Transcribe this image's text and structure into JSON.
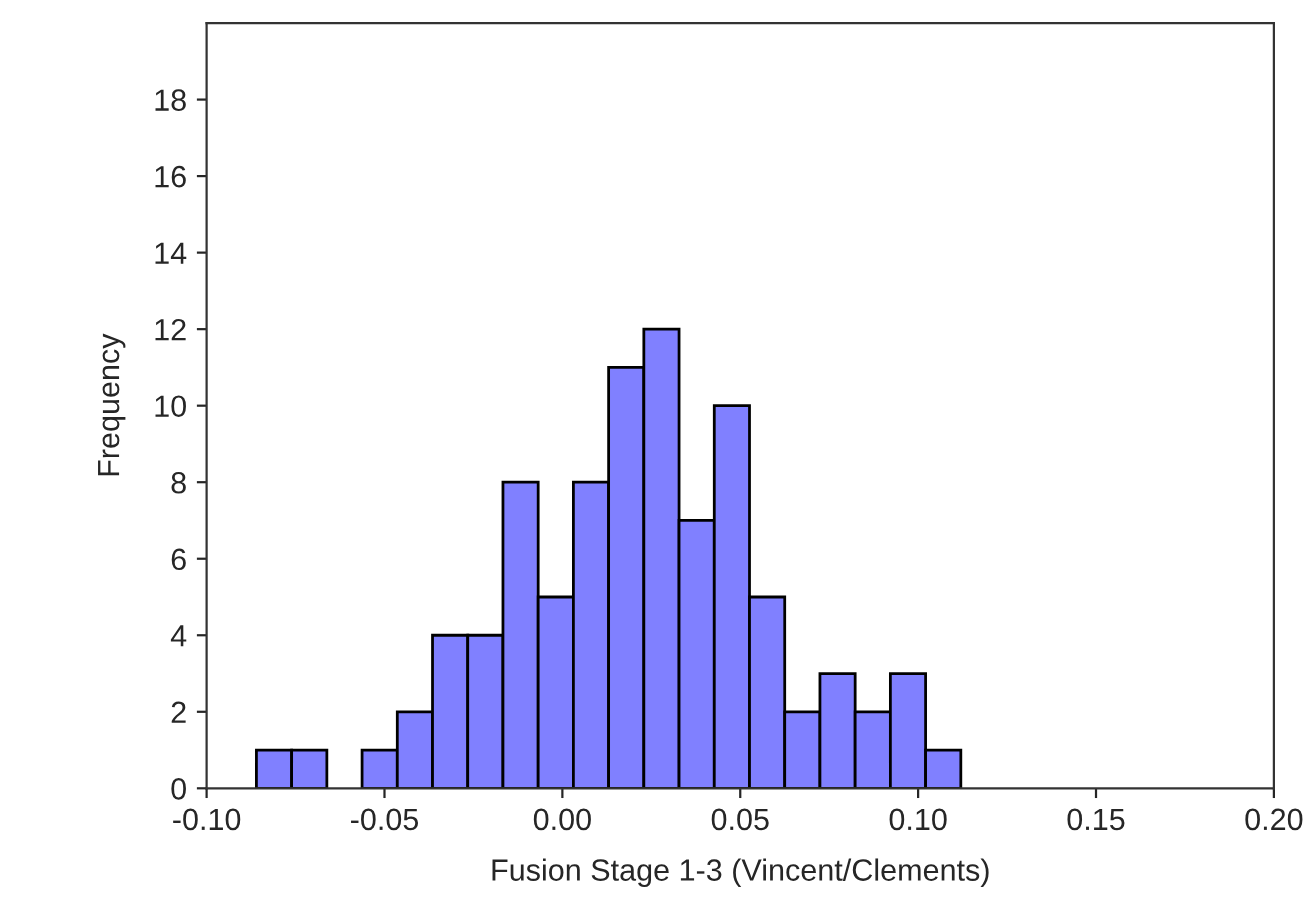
{
  "chart_data": {
    "type": "histogram",
    "xlabel": "Fusion Stage 1-3 (Vincent/Clements)",
    "ylabel": "Frequency",
    "bins": [
      -0.086,
      -0.0761,
      -0.0662,
      -0.0563,
      -0.0464,
      -0.0365,
      -0.0266,
      -0.0167,
      -0.0068,
      0.0031,
      0.013,
      0.0229,
      0.0328,
      0.0427,
      0.0526,
      0.0625,
      0.0724,
      0.0823,
      0.0922,
      0.1021,
      0.112
    ],
    "values": [
      1,
      1,
      0,
      1,
      2,
      4,
      4,
      8,
      5,
      8,
      11,
      12,
      7,
      10,
      5,
      2,
      3,
      2,
      3,
      1
    ],
    "color": "#8080ff",
    "xlim": [
      -0.1,
      0.2
    ],
    "xticks": [
      {
        "value": -0.1,
        "label": "-0.10"
      },
      {
        "value": -0.05,
        "label": "-0.05"
      },
      {
        "value": 0,
        "label": "0.00"
      },
      {
        "value": 0.05,
        "label": "0.05"
      },
      {
        "value": 0.1,
        "label": "0.10"
      },
      {
        "value": 0.15,
        "label": "0.15"
      },
      {
        "value": 0.2,
        "label": "0.20"
      }
    ],
    "ylim": [
      0,
      20
    ],
    "yticks": [
      0,
      2,
      4,
      6,
      8,
      10,
      12,
      14,
      16,
      18
    ],
    "grid": false
  }
}
